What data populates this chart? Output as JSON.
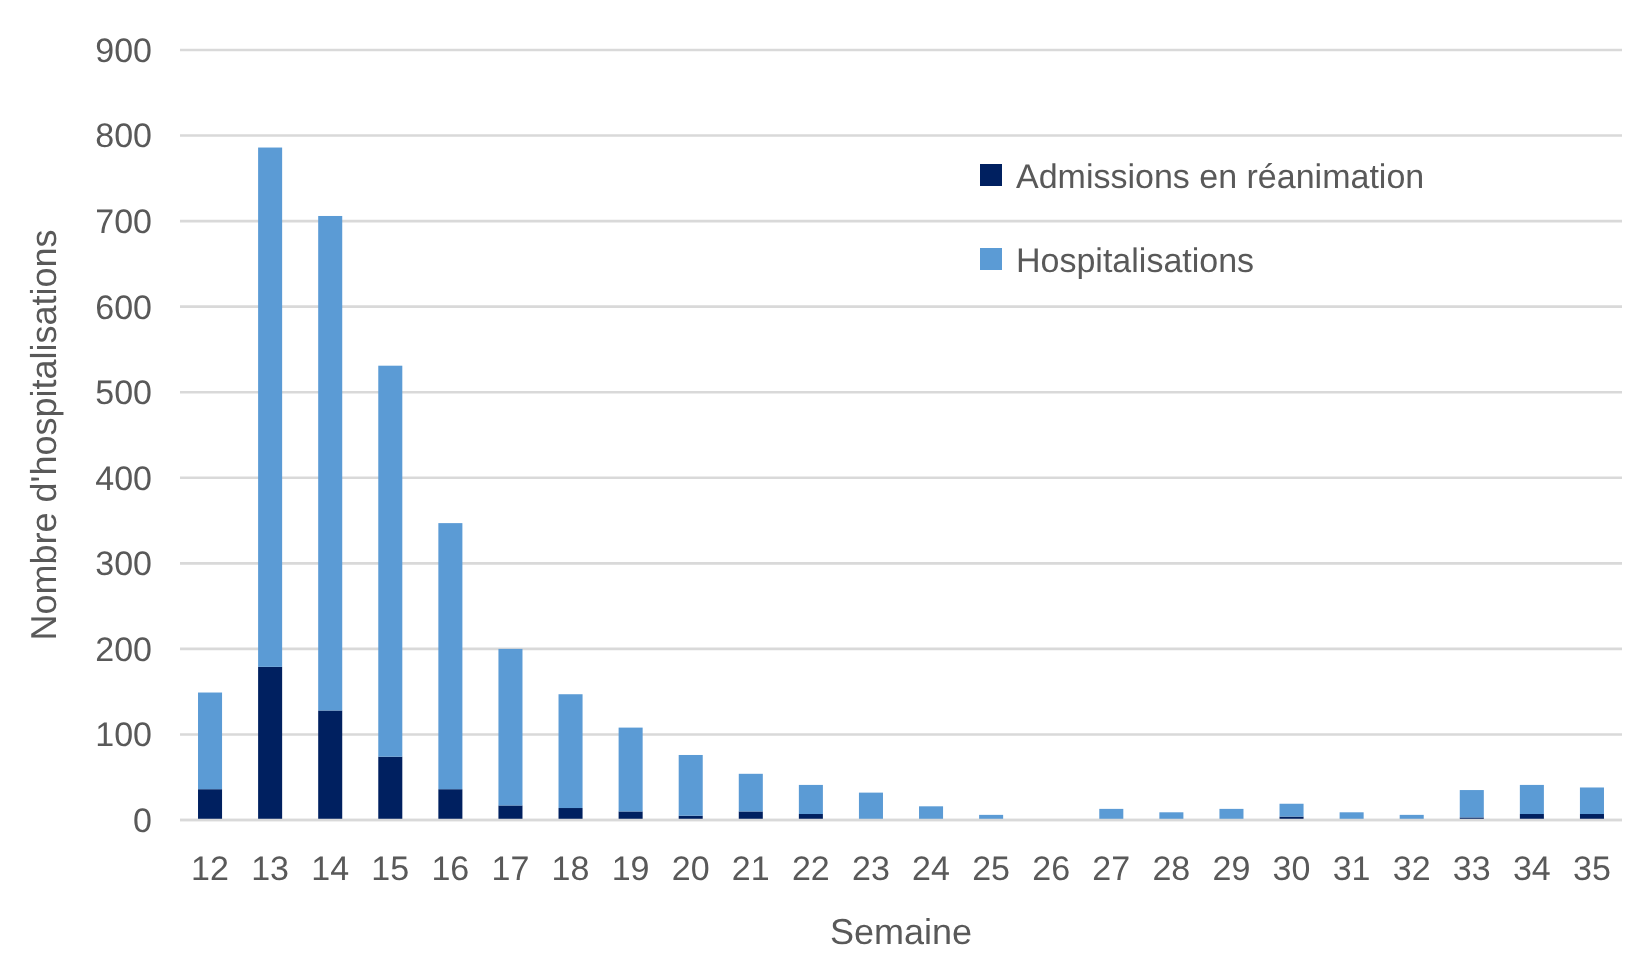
{
  "chart_data": {
    "type": "bar",
    "stacked": true,
    "xlabel": "Semaine",
    "ylabel": "Nombre d'hospitalisations",
    "categories": [
      "12",
      "13",
      "14",
      "15",
      "16",
      "17",
      "18",
      "19",
      "20",
      "21",
      "22",
      "23",
      "24",
      "25",
      "26",
      "27",
      "28",
      "29",
      "30",
      "31",
      "32",
      "33",
      "34",
      "35"
    ],
    "series": [
      {
        "name": "Admissions en réanimation",
        "color": "#002060",
        "values": [
          36,
          179,
          128,
          74,
          36,
          17,
          14,
          10,
          5,
          10,
          7,
          0,
          0,
          0,
          0,
          0,
          0,
          0,
          4,
          0,
          0,
          3,
          7,
          7
        ]
      },
      {
        "name": "Hospitalisations",
        "color": "#5b9bd5",
        "values": [
          113,
          607,
          578,
          457,
          311,
          183,
          133,
          98,
          71,
          44,
          34,
          32,
          16,
          6,
          0,
          13,
          9,
          13,
          15,
          9,
          6,
          32,
          34,
          31
        ]
      }
    ],
    "ylim": [
      0,
      900
    ],
    "yticks": [
      0,
      100,
      200,
      300,
      400,
      500,
      600,
      700,
      800,
      900
    ],
    "grid": "y",
    "legend": "top right"
  }
}
